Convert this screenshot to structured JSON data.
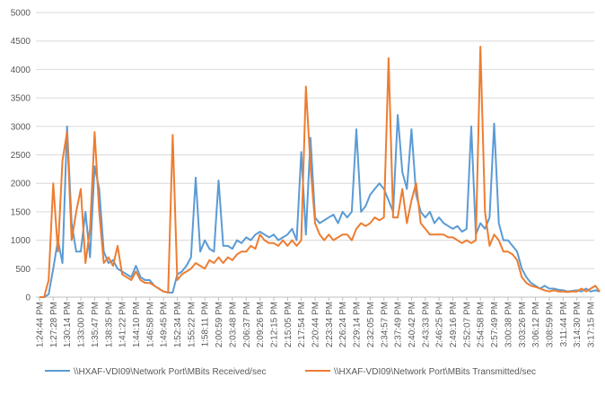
{
  "chart_data": {
    "type": "line",
    "categories": [
      "1:24:44 PM",
      null,
      null,
      "1:27:28 PM",
      null,
      null,
      "1:30:14 PM",
      null,
      null,
      "1:33:00 PM",
      null,
      null,
      "1:35:47 PM",
      null,
      null,
      "1:38:35 PM",
      null,
      null,
      "1:41:22 PM",
      null,
      null,
      "1:44:10 PM",
      null,
      null,
      "1:46:58 PM",
      null,
      null,
      "1:49:45 PM",
      null,
      null,
      "1:52:34 PM",
      null,
      null,
      "1:55:22 PM",
      null,
      null,
      "1:58:11 PM",
      null,
      null,
      "2:00:59 PM",
      null,
      null,
      "2:03:48 PM",
      null,
      null,
      "2:06:37 PM",
      null,
      null,
      "2:09:26 PM",
      null,
      null,
      "2:12:15 PM",
      null,
      null,
      "2:15:05 PM",
      null,
      null,
      "2:17:54 PM",
      null,
      null,
      "2:20:44 PM",
      null,
      null,
      "2:23:34 PM",
      null,
      null,
      "2:26:24 PM",
      null,
      null,
      "2:29:14 PM",
      null,
      null,
      "2:32:05 PM",
      null,
      null,
      "2:34:57 PM",
      null,
      null,
      "2:37:49 PM",
      null,
      null,
      "2:40:42 PM",
      null,
      null,
      "2:43:33 PM",
      null,
      null,
      "2:46:25 PM",
      null,
      null,
      "2:49:16 PM",
      null,
      null,
      "2:52:07 PM",
      null,
      null,
      "2:54:58 PM",
      null,
      null,
      "2:57:49 PM",
      null,
      null,
      "3:00:38 PM",
      null,
      null,
      "3:03:26 PM",
      null,
      null,
      "3:06:12 PM",
      null,
      null,
      "3:08:59 PM",
      null,
      null,
      "3:11:44 PM",
      null,
      null,
      "3:14:30 PM",
      null,
      null,
      "3:17:15 PM",
      null,
      null
    ],
    "series": [
      {
        "name": "\\\\HXAF-VDI09\\Network Port\\MBits Received/sec",
        "color": "#5b9bd5",
        "values": [
          0,
          0,
          50,
          500,
          1000,
          600,
          3000,
          1300,
          800,
          800,
          1500,
          700,
          2300,
          1900,
          800,
          600,
          650,
          500,
          450,
          400,
          350,
          550,
          350,
          300,
          300,
          200,
          150,
          100,
          80,
          80,
          400,
          450,
          550,
          700,
          2100,
          800,
          1000,
          850,
          800,
          2050,
          900,
          900,
          850,
          1000,
          950,
          1050,
          1000,
          1100,
          1150,
          1100,
          1050,
          1100,
          1000,
          1050,
          1100,
          1200,
          1000,
          2550,
          1100,
          2800,
          1400,
          1300,
          1350,
          1400,
          1450,
          1300,
          1500,
          1400,
          1500,
          2950,
          1500,
          1600,
          1800,
          1900,
          2000,
          1900,
          1700,
          1500,
          3200,
          2200,
          1900,
          2950,
          1800,
          1500,
          1400,
          1500,
          1300,
          1400,
          1300,
          1250,
          1200,
          1250,
          1150,
          1200,
          3000,
          1100,
          1300,
          1200,
          1400,
          3050,
          1300,
          1000,
          1000,
          900,
          800,
          500,
          350,
          250,
          200,
          150,
          200,
          150,
          150,
          130,
          120,
          100,
          110,
          120,
          100,
          150,
          100,
          120,
          100
        ]
      },
      {
        "name": "\\\\HXAF-VDI09\\Network Port\\MBits Transmitted/sec",
        "color": "#ed7d31",
        "values": [
          0,
          0,
          300,
          2000,
          800,
          2400,
          2900,
          1000,
          1500,
          1900,
          600,
          1200,
          2900,
          1500,
          600,
          700,
          550,
          900,
          400,
          350,
          300,
          450,
          300,
          250,
          250,
          200,
          150,
          100,
          80,
          2850,
          300,
          400,
          450,
          500,
          600,
          550,
          500,
          650,
          600,
          700,
          600,
          700,
          650,
          750,
          800,
          800,
          900,
          850,
          1100,
          1000,
          950,
          950,
          900,
          1000,
          900,
          1000,
          900,
          1000,
          3700,
          2300,
          1300,
          1100,
          1000,
          1100,
          1000,
          1050,
          1100,
          1100,
          1000,
          1200,
          1300,
          1250,
          1300,
          1400,
          1350,
          1400,
          4200,
          1400,
          1400,
          1900,
          1300,
          1700,
          2000,
          1300,
          1200,
          1100,
          1100,
          1100,
          1100,
          1050,
          1050,
          1000,
          950,
          1000,
          950,
          1000,
          4400,
          1500,
          900,
          1100,
          1000,
          800,
          800,
          750,
          650,
          350,
          250,
          200,
          180,
          150,
          120,
          100,
          120,
          100,
          100,
          90,
          100,
          100,
          150,
          100,
          150,
          200,
          100
        ]
      }
    ],
    "ylim": [
      0,
      5000
    ],
    "yticks": [
      0,
      500,
      1000,
      1500,
      2000,
      2500,
      3000,
      3500,
      4000,
      4500,
      5000
    ],
    "grid": true,
    "legend": "bottom"
  }
}
